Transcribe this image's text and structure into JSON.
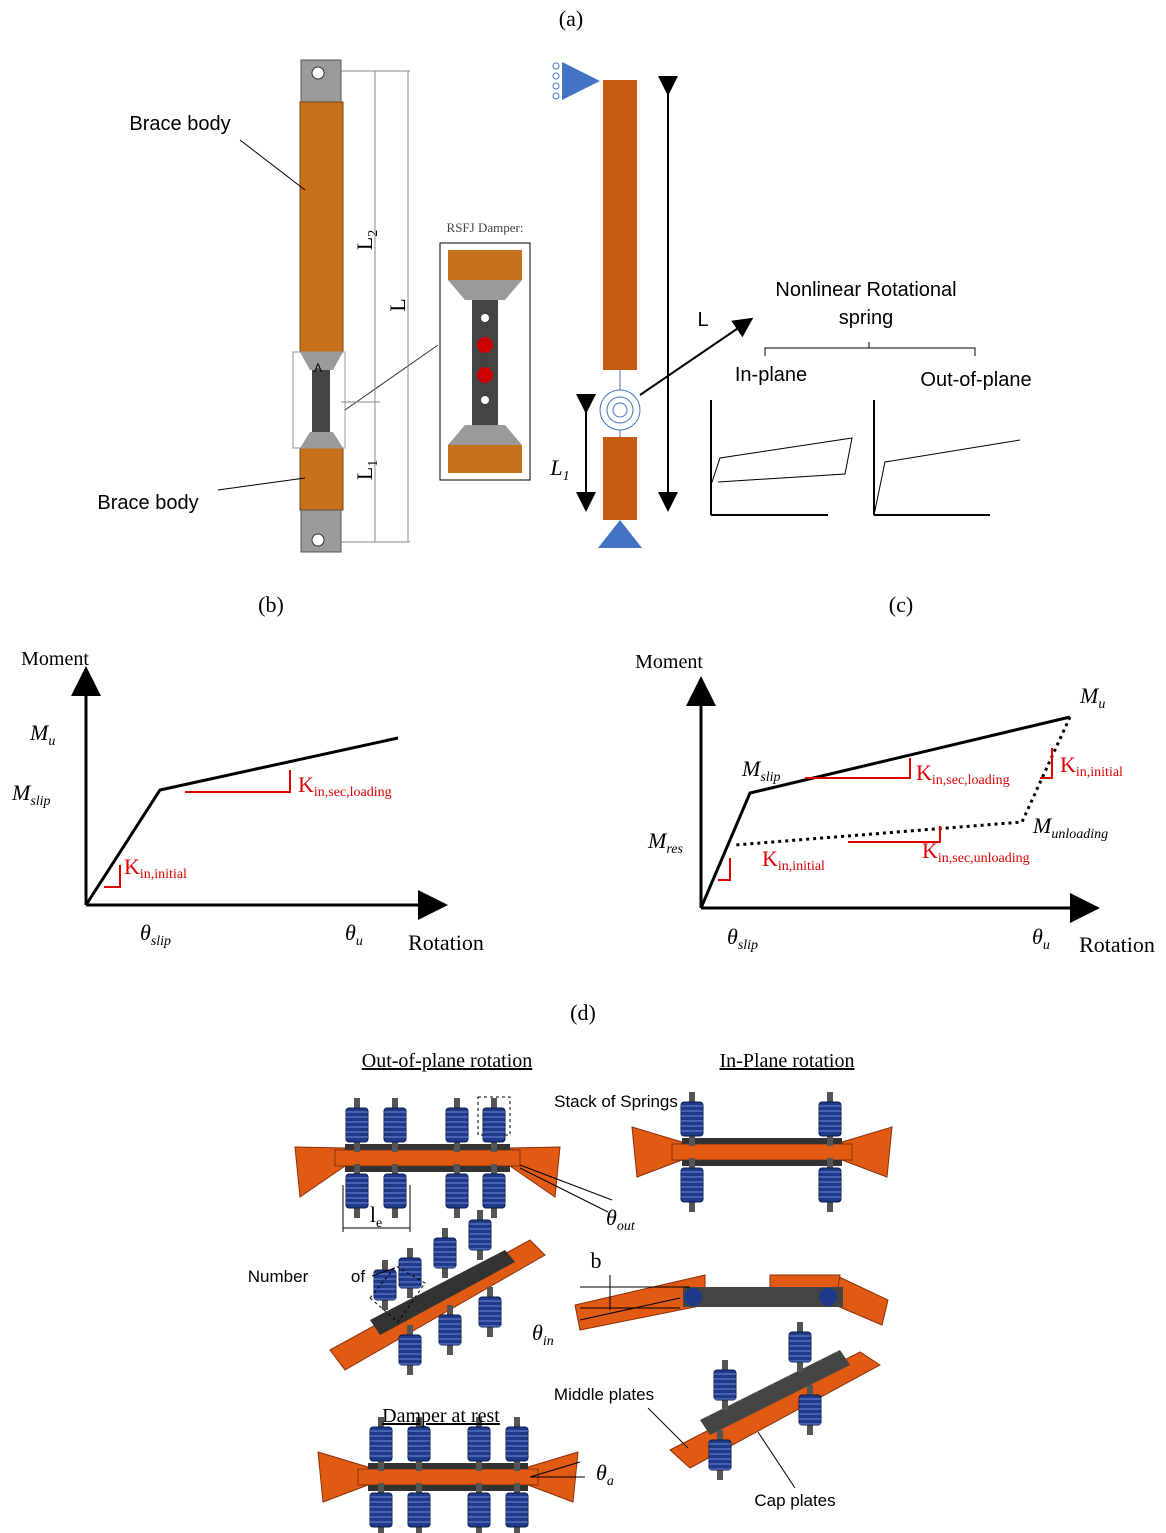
{
  "panel_a": {
    "label": "(a)",
    "brace_upper": "Brace body",
    "brace_lower": "Brace body",
    "dim_l2": {
      "main": "L",
      "sub": "2"
    },
    "dim_l": "L",
    "dim_l1": {
      "main": "L",
      "sub": "1"
    },
    "point_a": "A",
    "damper_title": "RSFJ Damper:",
    "spring_label": [
      "Nonlinear Rotational",
      "spring"
    ],
    "model_l": "L",
    "model_l1": {
      "main": "L",
      "sub": "1"
    },
    "in_plane": "In-plane",
    "out_of_plane": "Out-of-plane"
  },
  "panel_b": {
    "label": "(b)",
    "y_axis": "Moment",
    "x_axis": "Rotation",
    "m_u": {
      "main": "M",
      "sub": "u"
    },
    "m_slip": {
      "main": "M",
      "sub": "slip"
    },
    "k_initial": {
      "main": "K",
      "sub": "in,initial"
    },
    "k_sec_loading": {
      "main": "K",
      "sub": "in,sec,loading"
    },
    "theta_slip": {
      "main": "θ",
      "sub": "slip"
    },
    "theta_u": {
      "main": "θ",
      "sub": "u"
    }
  },
  "panel_c": {
    "label": "(c)",
    "y_axis": "Moment",
    "x_axis": "Rotation",
    "m_u": {
      "main": "M",
      "sub": "u"
    },
    "m_slip": {
      "main": "M",
      "sub": "slip"
    },
    "m_res": {
      "main": "M",
      "sub": "res"
    },
    "m_unloading": {
      "main": "M",
      "sub": "unloading"
    },
    "k_initial_top": {
      "main": "K",
      "sub": "in,initial"
    },
    "k_initial_bottom": {
      "main": "K",
      "sub": "in,initial"
    },
    "k_sec_loading": {
      "main": "K",
      "sub": "in,sec,loading"
    },
    "k_sec_unloading": {
      "main": "K",
      "sub": "in,sec,unloading"
    },
    "theta_slip": {
      "main": "θ",
      "sub": "slip"
    },
    "theta_u": {
      "main": "θ",
      "sub": "u"
    }
  },
  "panel_d": {
    "label": "(d)",
    "out_of_plane_title": "Out-of-plane rotation",
    "in_plane_title": "In-Plane rotation",
    "stack_of_springs": "Stack of Springs",
    "le": {
      "main": "l",
      "sub": "e"
    },
    "theta_out": {
      "main": "θ",
      "sub": "out"
    },
    "number": "Number",
    "of": "of",
    "b": "b",
    "theta_in": {
      "main": "θ",
      "sub": "in"
    },
    "middle_plates": "Middle plates",
    "rest_title": "Damper at rest",
    "theta_a": {
      "main": "θ",
      "sub": "a"
    },
    "cap_plates": "Cap plates"
  }
}
